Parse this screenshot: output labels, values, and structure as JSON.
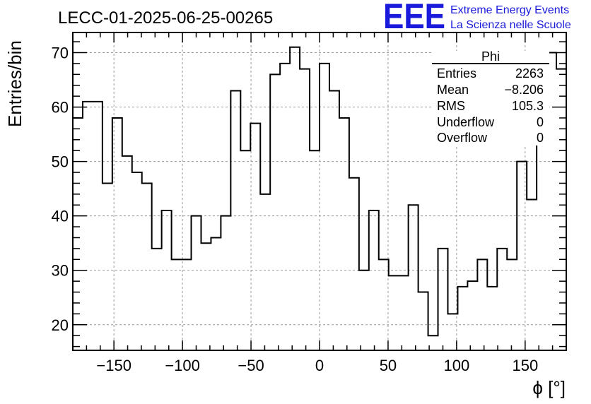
{
  "chart_data": {
    "type": "histogram",
    "title": "LECC-01-2025-06-25-00265",
    "xlabel": "ϕ [°]",
    "ylabel": "Entries/bin",
    "xlim": [
      -180,
      180
    ],
    "ylim": [
      15.3,
      73.7
    ],
    "bin_width": 7.2,
    "x_ticks": [
      -150,
      -100,
      -50,
      0,
      50,
      100,
      150
    ],
    "x_tick_labels": [
      "−150",
      "−100",
      "−50",
      "0",
      "50",
      "100",
      "150"
    ],
    "y_ticks": [
      20,
      30,
      40,
      50,
      60,
      70
    ],
    "y_tick_labels": [
      "20",
      "30",
      "40",
      "50",
      "60",
      "70"
    ],
    "grid": true,
    "values": [
      58,
      61,
      61,
      46,
      58,
      51,
      48,
      46,
      34,
      41,
      32,
      32,
      40,
      35,
      36,
      40,
      63,
      52,
      57,
      44,
      66,
      68,
      71,
      67,
      52,
      68,
      63,
      58,
      47,
      30,
      41,
      32,
      29,
      29,
      42,
      26,
      18,
      34,
      22,
      27,
      28,
      32,
      27,
      34,
      32,
      50,
      43,
      56,
      70,
      67
    ],
    "stats_box": {
      "title": "Phi",
      "rows": [
        {
          "label": "Entries",
          "value": "2263"
        },
        {
          "label": "Mean",
          "value": "−8.206"
        },
        {
          "label": "RMS",
          "value": "105.3"
        },
        {
          "label": "Underflow",
          "value": "0"
        },
        {
          "label": "Overflow",
          "value": "0"
        }
      ]
    }
  },
  "branding": {
    "logo": "EEE",
    "line1": "Extreme Energy Events",
    "line2": "La Scienza nelle Scuole",
    "color": "#1a1adc"
  }
}
